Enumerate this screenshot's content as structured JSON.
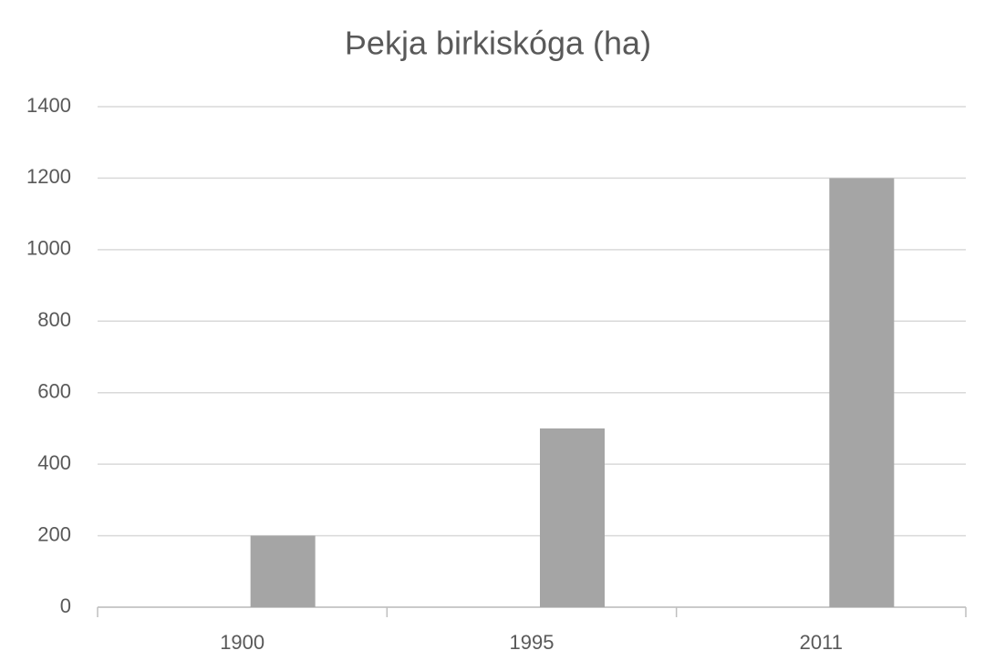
{
  "chart_data": {
    "type": "bar",
    "title": "Þekja birkiskóga (ha)",
    "categories": [
      "1900",
      "1995",
      "2011"
    ],
    "values": [
      200,
      500,
      1200
    ],
    "color": "#a5a5a5",
    "ylim": [
      0,
      1400
    ],
    "yticks": [
      0,
      200,
      400,
      600,
      800,
      1000,
      1200,
      1400
    ],
    "grid": true
  }
}
